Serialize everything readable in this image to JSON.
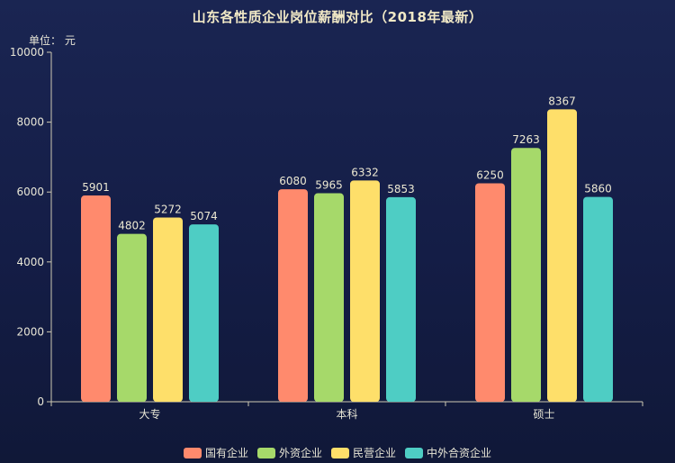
{
  "title": "山东各性质企业岗位薪酬对比（2018年最新）",
  "unit_label": "单位： 元",
  "chart_data": {
    "type": "bar",
    "title": "山东各性质企业岗位薪酬对比（2018年最新）",
    "ylabel": "单位： 元",
    "categories": [
      "大专",
      "本科",
      "硕士"
    ],
    "ylim": [
      0,
      10000
    ],
    "yticks": [
      0,
      2000,
      4000,
      6000,
      8000,
      10000
    ],
    "grid": false,
    "legend_position": "bottom",
    "series": [
      {
        "name": "国有企业",
        "color": "#ff8a6d",
        "values": [
          5901,
          6080,
          6250
        ]
      },
      {
        "name": "外资企业",
        "color": "#a6d96a",
        "values": [
          4802,
          5965,
          7263
        ]
      },
      {
        "name": "民营企业",
        "color": "#fedf6a",
        "values": [
          5272,
          6332,
          8367
        ]
      },
      {
        "name": "中外合资企业",
        "color": "#4ecdc4",
        "values": [
          5074,
          5853,
          5860
        ]
      }
    ]
  }
}
